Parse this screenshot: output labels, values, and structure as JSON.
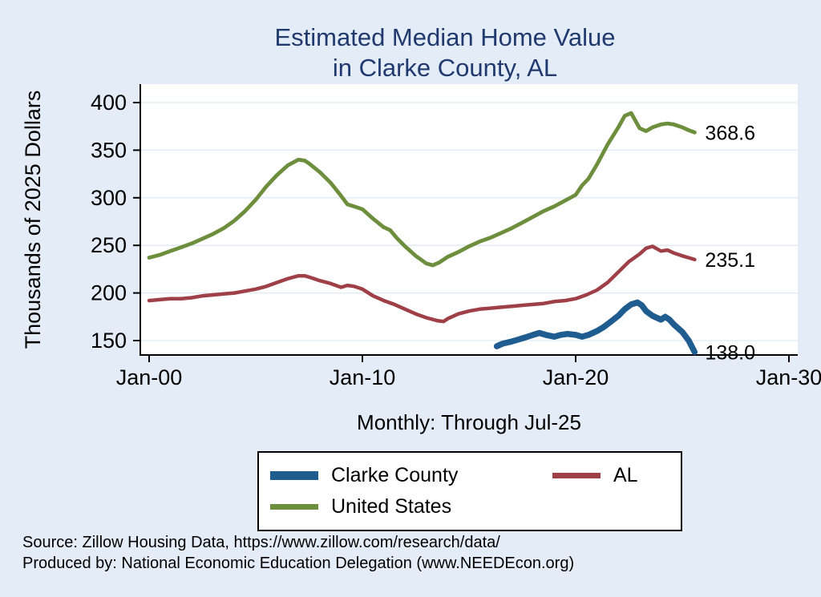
{
  "title": {
    "line1": "Estimated Median Home Value",
    "line2": "in Clarke County, AL"
  },
  "axes": {
    "ylabel": "Thousands of 2025 Dollars",
    "xsubtitle": "Monthly: Through Jul-25"
  },
  "source": {
    "line1": "Source: Zillow Housing Data, https://www.zillow.com/research/data/",
    "line2": "Produced by: National Economic Education Delegation (www.NEEDEcon.org)"
  },
  "chart_data": {
    "type": "line",
    "title": "Estimated Median Home Value in Clarke County, AL",
    "ylabel": "Thousands of 2025 Dollars",
    "xlabel": "Monthly: Through Jul-25",
    "ylim": [
      150,
      400
    ],
    "xlim": [
      2000,
      2030
    ],
    "grid": true,
    "legend_position": "bottom",
    "y_ticks": [
      150,
      200,
      250,
      300,
      350,
      400
    ],
    "x_ticks": [
      {
        "label": "Jan-00",
        "year": 2000
      },
      {
        "label": "Jan-10",
        "year": 2010
      },
      {
        "label": "Jan-20",
        "year": 2020
      },
      {
        "label": "Jan-30",
        "year": 2030
      }
    ],
    "series": [
      {
        "name": "Clarke County",
        "color": "#1f5c8f",
        "width": 7.5,
        "end_label": "138.0",
        "points": [
          [
            2016.3,
            144
          ],
          [
            2016.6,
            147
          ],
          [
            2017.0,
            149
          ],
          [
            2017.3,
            151
          ],
          [
            2017.6,
            153
          ],
          [
            2018.0,
            156
          ],
          [
            2018.3,
            158
          ],
          [
            2018.6,
            156
          ],
          [
            2019.0,
            154
          ],
          [
            2019.3,
            156
          ],
          [
            2019.6,
            157
          ],
          [
            2020.0,
            156
          ],
          [
            2020.3,
            154
          ],
          [
            2020.6,
            156
          ],
          [
            2021.0,
            160
          ],
          [
            2021.3,
            164
          ],
          [
            2021.6,
            169
          ],
          [
            2022.0,
            176
          ],
          [
            2022.3,
            183
          ],
          [
            2022.6,
            188
          ],
          [
            2022.9,
            190
          ],
          [
            2023.1,
            187
          ],
          [
            2023.3,
            181
          ],
          [
            2023.6,
            176
          ],
          [
            2024.0,
            172
          ],
          [
            2024.2,
            175
          ],
          [
            2024.4,
            172
          ],
          [
            2024.6,
            167
          ],
          [
            2025.0,
            159
          ],
          [
            2025.3,
            150
          ],
          [
            2025.58,
            138.0
          ]
        ]
      },
      {
        "name": "AL",
        "color": "#9f4048",
        "width": 4.5,
        "end_label": "235.1",
        "points": [
          [
            2000.0,
            192
          ],
          [
            2000.5,
            193
          ],
          [
            2001.0,
            194
          ],
          [
            2001.5,
            194
          ],
          [
            2002.0,
            195
          ],
          [
            2002.5,
            197
          ],
          [
            2003.0,
            198
          ],
          [
            2003.5,
            199
          ],
          [
            2004.0,
            200
          ],
          [
            2004.5,
            202
          ],
          [
            2005.0,
            204
          ],
          [
            2005.5,
            207
          ],
          [
            2006.0,
            211
          ],
          [
            2006.5,
            215
          ],
          [
            2007.0,
            218
          ],
          [
            2007.3,
            218
          ],
          [
            2007.6,
            216
          ],
          [
            2008.0,
            213
          ],
          [
            2008.5,
            210
          ],
          [
            2009.0,
            206
          ],
          [
            2009.3,
            208
          ],
          [
            2009.6,
            207
          ],
          [
            2010.0,
            204
          ],
          [
            2010.5,
            197
          ],
          [
            2011.0,
            192
          ],
          [
            2011.5,
            188
          ],
          [
            2012.0,
            183
          ],
          [
            2012.5,
            178
          ],
          [
            2013.0,
            174
          ],
          [
            2013.5,
            171
          ],
          [
            2013.8,
            170
          ],
          [
            2014.0,
            173
          ],
          [
            2014.5,
            178
          ],
          [
            2015.0,
            181
          ],
          [
            2015.5,
            183
          ],
          [
            2016.0,
            184
          ],
          [
            2016.5,
            185
          ],
          [
            2017.0,
            186
          ],
          [
            2017.5,
            187
          ],
          [
            2018.0,
            188
          ],
          [
            2018.5,
            189
          ],
          [
            2019.0,
            191
          ],
          [
            2019.5,
            192
          ],
          [
            2020.0,
            194
          ],
          [
            2020.5,
            198
          ],
          [
            2021.0,
            203
          ],
          [
            2021.5,
            211
          ],
          [
            2022.0,
            222
          ],
          [
            2022.5,
            233
          ],
          [
            2023.0,
            241
          ],
          [
            2023.3,
            247
          ],
          [
            2023.6,
            249
          ],
          [
            2024.0,
            244
          ],
          [
            2024.3,
            245
          ],
          [
            2024.6,
            242
          ],
          [
            2025.0,
            239
          ],
          [
            2025.3,
            237
          ],
          [
            2025.58,
            235.1
          ]
        ]
      },
      {
        "name": "United States",
        "color": "#6d8e3c",
        "width": 4.8,
        "end_label": "368.6",
        "points": [
          [
            2000.0,
            237
          ],
          [
            2000.5,
            240
          ],
          [
            2001.0,
            244
          ],
          [
            2001.5,
            248
          ],
          [
            2002.0,
            252
          ],
          [
            2002.5,
            257
          ],
          [
            2003.0,
            262
          ],
          [
            2003.5,
            268
          ],
          [
            2004.0,
            276
          ],
          [
            2004.5,
            286
          ],
          [
            2005.0,
            298
          ],
          [
            2005.5,
            312
          ],
          [
            2006.0,
            324
          ],
          [
            2006.5,
            334
          ],
          [
            2007.0,
            340
          ],
          [
            2007.3,
            339
          ],
          [
            2007.5,
            336
          ],
          [
            2008.0,
            327
          ],
          [
            2008.5,
            316
          ],
          [
            2009.0,
            302
          ],
          [
            2009.3,
            293
          ],
          [
            2009.6,
            291
          ],
          [
            2010.0,
            288
          ],
          [
            2010.5,
            278
          ],
          [
            2011.0,
            269
          ],
          [
            2011.3,
            266
          ],
          [
            2011.6,
            258
          ],
          [
            2012.0,
            249
          ],
          [
            2012.5,
            239
          ],
          [
            2013.0,
            231
          ],
          [
            2013.3,
            229
          ],
          [
            2013.6,
            232
          ],
          [
            2014.0,
            238
          ],
          [
            2014.5,
            243
          ],
          [
            2015.0,
            249
          ],
          [
            2015.5,
            254
          ],
          [
            2016.0,
            258
          ],
          [
            2016.5,
            263
          ],
          [
            2017.0,
            268
          ],
          [
            2017.5,
            274
          ],
          [
            2018.0,
            280
          ],
          [
            2018.5,
            286
          ],
          [
            2019.0,
            291
          ],
          [
            2019.5,
            297
          ],
          [
            2020.0,
            303
          ],
          [
            2020.3,
            313
          ],
          [
            2020.6,
            320
          ],
          [
            2021.0,
            335
          ],
          [
            2021.5,
            356
          ],
          [
            2022.0,
            374
          ],
          [
            2022.3,
            386
          ],
          [
            2022.6,
            389
          ],
          [
            2023.0,
            373
          ],
          [
            2023.3,
            370
          ],
          [
            2023.6,
            374
          ],
          [
            2024.0,
            377
          ],
          [
            2024.3,
            378
          ],
          [
            2024.6,
            377
          ],
          [
            2025.0,
            374
          ],
          [
            2025.3,
            371
          ],
          [
            2025.58,
            368.6
          ]
        ]
      }
    ],
    "colors": {
      "background": "#e4edf7",
      "plot_background": "#ffffff",
      "title": "#203a70",
      "clarke_county": "#1f5c8f",
      "al": "#9f4048",
      "united_states": "#6d8e3c"
    }
  }
}
